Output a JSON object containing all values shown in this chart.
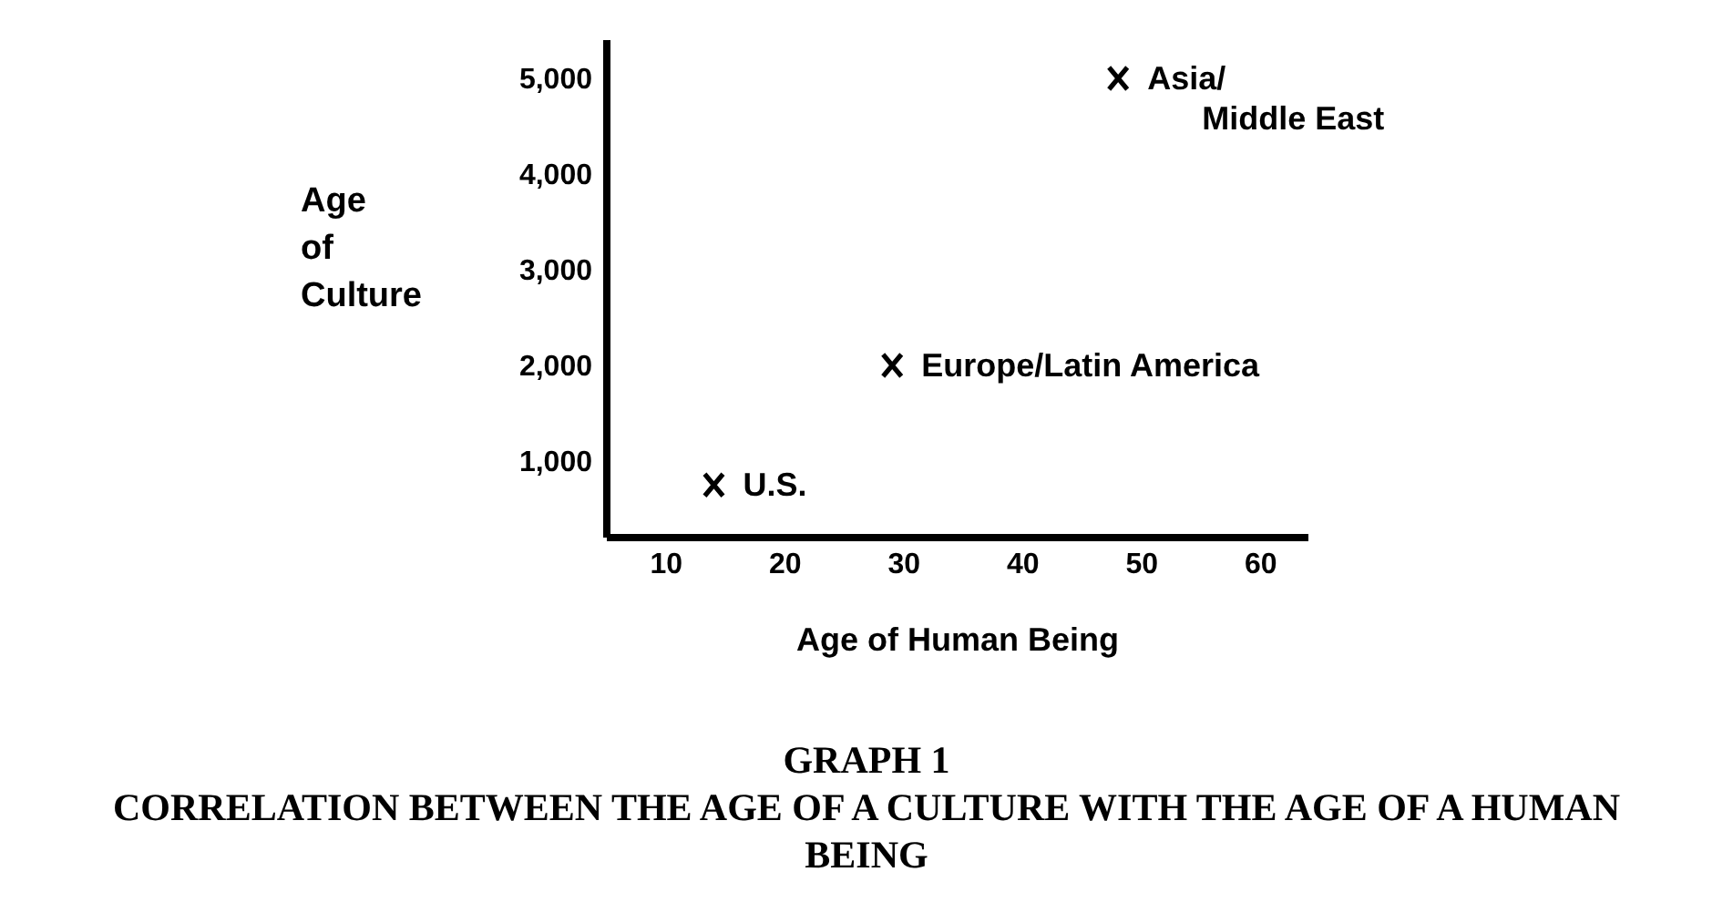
{
  "chart_data": {
    "type": "scatter",
    "title": "GRAPH 1",
    "subtitle": "CORRELATION BETWEEN THE AGE OF A CULTURE WITH THE AGE OF A HUMAN BEING",
    "xlabel": "Age of Human Being",
    "ylabel": "Age\nof\nCulture",
    "x": [
      14,
      29,
      48
    ],
    "series": [
      {
        "color": "#000000",
        "values": [
          750,
          2000,
          5000
        ]
      }
    ],
    "marker": "cross",
    "grid": false,
    "xlim": [
      5,
      64
    ],
    "xticks": [
      10,
      20,
      30,
      40,
      50,
      60
    ],
    "ylim": [
      200,
      5400
    ],
    "yticks": [
      {
        "value": 1000,
        "label": "1,000"
      },
      {
        "value": 2000,
        "label": "2,000"
      },
      {
        "value": 3000,
        "label": "3,000"
      },
      {
        "value": 4000,
        "label": "4,000"
      },
      {
        "value": 5000,
        "label": "5,000"
      }
    ],
    "annotations": [
      {
        "text": "U.S.",
        "x": 14,
        "y": 750
      },
      {
        "text": "Europe/Latin America",
        "x": 29,
        "y": 2000
      },
      {
        "text": "Asia/\nMiddle East",
        "x": 48,
        "y": 5000
      }
    ]
  }
}
